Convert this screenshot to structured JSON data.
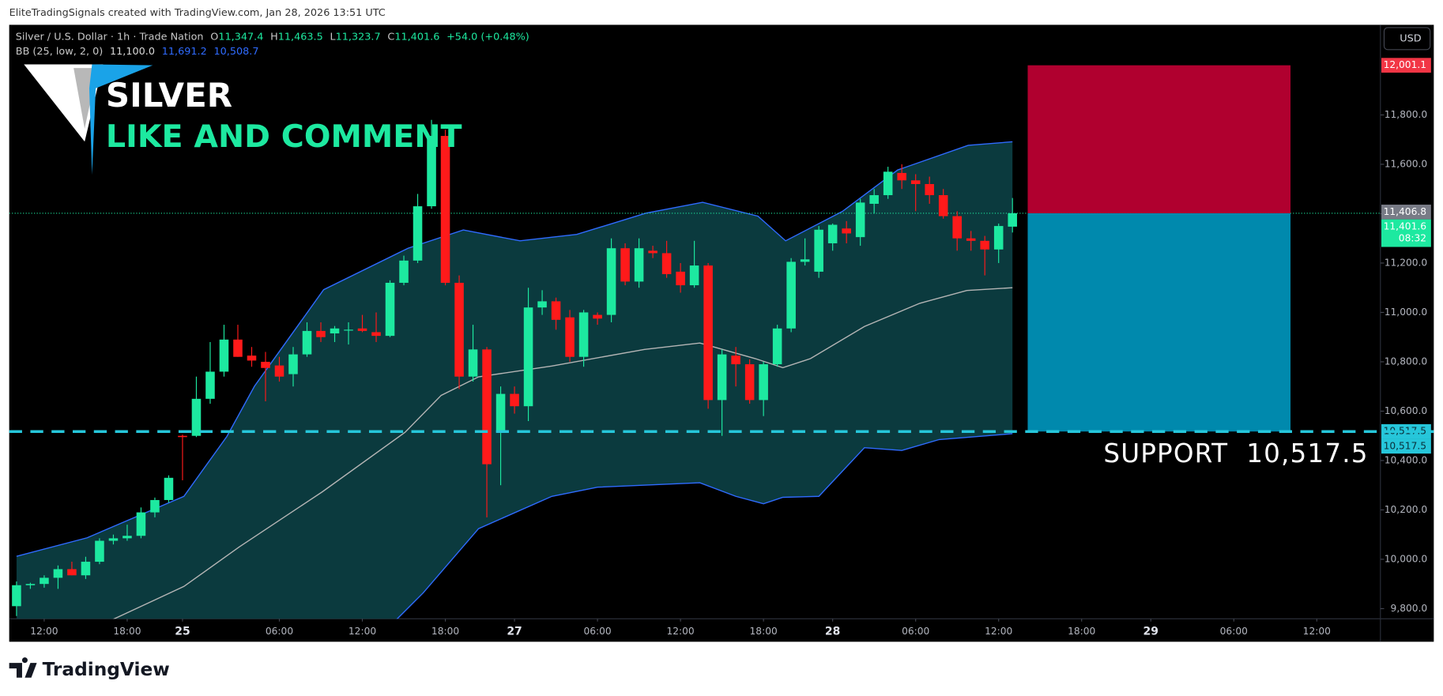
{
  "chart_data": {
    "type": "candlestick",
    "header": "EliteTradingSignals created with TradingView.com, Jan 28, 2026 13:51 UTC",
    "symbol": "Silver / U.S. Dollar · 1h · Trade Nation",
    "ohlc_legend": [
      {
        "label": "O",
        "value": "11,347.4"
      },
      {
        "label": "H",
        "value": "11,463.5"
      },
      {
        "label": "L",
        "value": "11,323.7"
      },
      {
        "label": "C",
        "value": "11,401.6"
      }
    ],
    "change": "+54.0 (+0.48%)",
    "indicator": {
      "name": "BB (25, low, 2, 0)",
      "values": [
        "11,100.0",
        "11,691.2",
        "10,508.7"
      ]
    },
    "overlay": {
      "title": "SILVER",
      "subtitle": "LIKE AND COMMENT",
      "support": "SUPPORT  10,517.5"
    },
    "currency": "USD",
    "countdown": "08:32",
    "footer": "TradingView",
    "up_color": "#1de9a0",
    "down_color": "#ff1a1a",
    "open": [
      9810,
      9895,
      9900,
      9925,
      9960,
      9935,
      9990,
      10075,
      10085,
      10095,
      10190,
      10240,
      10500,
      10500,
      10650,
      10760,
      10890,
      10825,
      10800,
      10785,
      10750,
      10830,
      10925,
      10915,
      10930,
      10935,
      10920,
      10905,
      11120,
      11210,
      11430,
      11715,
      11120,
      10740,
      10850,
      10515,
      10670,
      10620,
      11020,
      11045,
      10980,
      10820,
      10990,
      10990,
      11260,
      11125,
      11250,
      11240,
      11165,
      11110,
      11190,
      10645,
      10825,
      10790,
      10645,
      10790,
      10935,
      11205,
      11165,
      11280,
      11340,
      11305,
      11440,
      11475,
      11565,
      11535,
      11520,
      11475,
      11390,
      11300,
      11290,
      11255,
      11347.4
    ],
    "high": [
      9910,
      9905,
      9935,
      9975,
      9990,
      10010,
      10085,
      10100,
      10140,
      10210,
      10250,
      10340,
      10505,
      10740,
      10880,
      10950,
      10950,
      10860,
      10840,
      10820,
      10860,
      10960,
      10960,
      10945,
      10960,
      10990,
      11000,
      11130,
      11230,
      11480,
      11780,
      11740,
      11150,
      10950,
      10860,
      10700,
      10700,
      11100,
      11090,
      11060,
      11010,
      11010,
      11000,
      11300,
      11280,
      11300,
      11270,
      11290,
      11200,
      11290,
      11200,
      10850,
      10860,
      10810,
      10800,
      10950,
      11220,
      11300,
      11350,
      11360,
      11370,
      11460,
      11500,
      11590,
      11600,
      11560,
      11550,
      11500,
      11410,
      11330,
      11310,
      11360,
      11463.5
    ],
    "low": [
      9770,
      9880,
      9885,
      9880,
      9935,
      9920,
      9980,
      10060,
      10075,
      10085,
      10170,
      10230,
      10320,
      10495,
      10630,
      10740,
      10820,
      10780,
      10640,
      10720,
      10700,
      10820,
      10880,
      10880,
      10870,
      10920,
      10880,
      10900,
      11110,
      11200,
      11420,
      11110,
      10690,
      10720,
      10170,
      10300,
      10590,
      10560,
      10990,
      10930,
      10800,
      10780,
      10950,
      10960,
      11110,
      11100,
      11220,
      11140,
      11080,
      11100,
      10610,
      10500,
      10700,
      10630,
      10580,
      10780,
      10920,
      11190,
      11140,
      11250,
      11280,
      11270,
      11400,
      11460,
      11500,
      11410,
      11440,
      11380,
      11250,
      11250,
      11150,
      11200,
      11323.7
    ],
    "close": [
      9895,
      9900,
      9925,
      9960,
      9935,
      9990,
      10075,
      10085,
      10095,
      10190,
      10240,
      10330,
      10495,
      10650,
      10760,
      10890,
      10820,
      10805,
      10775,
      10740,
      10830,
      10925,
      10900,
      10935,
      10930,
      10925,
      10905,
      11120,
      11210,
      11430,
      11715,
      11120,
      10740,
      10850,
      10385,
      10670,
      10620,
      11020,
      11045,
      10970,
      10820,
      11000,
      10975,
      11260,
      11125,
      11260,
      11240,
      11155,
      11110,
      11190,
      10645,
      10830,
      10790,
      10645,
      10790,
      10935,
      11205,
      11215,
      11335,
      11355,
      11320,
      11445,
      11475,
      11570,
      11535,
      11520,
      11475,
      11390,
      11300,
      11290,
      11255,
      11350,
      11401.6
    ],
    "bollinger": {
      "fill": "#0b3a3e",
      "upper": {
        "color": "#2f6bff",
        "x": [
          0,
          5.1,
          12.1,
          15.2,
          17.2,
          22.2,
          28.3,
          32.3,
          36.4,
          40.5,
          45.5,
          49.6,
          53.6,
          55.6,
          59.7,
          63.7,
          68.8,
          72
        ],
        "values": [
          10012,
          10087,
          10255,
          10497,
          10701,
          11092,
          11260,
          11334,
          11290,
          11316,
          11402,
          11446,
          11390,
          11290,
          11409,
          11577,
          11677,
          11691.2
        ]
      },
      "middle": {
        "color": "#b5b5b5",
        "x": [
          6.8,
          12.1,
          16.1,
          22.1,
          28.1,
          30.7,
          33.4,
          38.7,
          45.4,
          49.4,
          53.4,
          55.4,
          57.4,
          61.3,
          65.3,
          68.7,
          72
        ],
        "values": [
          9752,
          9890,
          10050,
          10273,
          10515,
          10664,
          10739,
          10783,
          10850,
          10876,
          10813,
          10776,
          10813,
          10943,
          11037,
          11089,
          11100
        ]
      },
      "lower": {
        "color": "#2f6bff",
        "x": [
          27.4,
          29.4,
          33.4,
          38.7,
          42,
          49.4,
          52,
          54,
          55.4,
          58,
          61.3,
          64,
          66.7,
          72
        ],
        "values": [
          9752,
          9864,
          10124,
          10255,
          10292,
          10310,
          10255,
          10225,
          10251,
          10255,
          10452,
          10441,
          10485,
          10508.7
        ]
      }
    },
    "position": {
      "x": [
        73.1,
        92.1
      ],
      "target": 12001.1,
      "entry": 11401.6,
      "stop": 10517.5,
      "target_color": "#b0002f",
      "stop_color": "#0089ad"
    },
    "last_price": 11401.6,
    "support": 10517.5,
    "price_labels": [
      {
        "value": 12001.1,
        "label": "12,001.1",
        "color": "#f23645",
        "text_color": "#ffffff"
      },
      {
        "value": 11406.8,
        "label": "11,406.8",
        "color": "#787b86",
        "text_color": "#ffffff"
      },
      {
        "value": 11401.6,
        "label": "11,401.6",
        "color": "#1de9a0",
        "text_color": "#ffffff"
      },
      {
        "value": 10517.5,
        "label": "10,517.5",
        "color": "#26c6da",
        "text_color": "#0a2f3a"
      },
      {
        "value": 10517.5,
        "label": "10,517.5",
        "color": "#26c6da",
        "text_color": "#0a2f3a"
      }
    ],
    "xlim": [
      -0.53,
      98.6
    ],
    "ylim": [
      9759,
      12165
    ],
    "xticks": [
      {
        "value": 2,
        "label": "12:00"
      },
      {
        "value": 8,
        "label": "18:00"
      },
      {
        "value": 12,
        "label": "25"
      },
      {
        "value": 19,
        "label": "06:00"
      },
      {
        "value": 25,
        "label": "12:00"
      },
      {
        "value": 31,
        "label": "18:00"
      },
      {
        "value": 36,
        "label": "27"
      },
      {
        "value": 42,
        "label": "06:00"
      },
      {
        "value": 48,
        "label": "12:00"
      },
      {
        "value": 54,
        "label": "18:00"
      },
      {
        "value": 59,
        "label": "28"
      },
      {
        "value": 65,
        "label": "06:00"
      },
      {
        "value": 71,
        "label": "12:00"
      },
      {
        "value": 77,
        "label": "18:00"
      },
      {
        "value": 82,
        "label": "29"
      },
      {
        "value": 88,
        "label": "06:00"
      },
      {
        "value": 94,
        "label": "12:00"
      }
    ],
    "yticks": [
      {
        "value": 9800,
        "label": "9,800.0"
      },
      {
        "value": 10000,
        "label": "10,000.0"
      },
      {
        "value": 10200,
        "label": "10,200.0"
      },
      {
        "value": 10400,
        "label": "10,400.0"
      },
      {
        "value": 10600,
        "label": "10,600.0"
      },
      {
        "value": 10800,
        "label": "10,800.0"
      },
      {
        "value": 11000,
        "label": "11,000.0"
      },
      {
        "value": 11200,
        "label": "11,200.0"
      },
      {
        "value": 11400,
        "label": "11,400.0"
      },
      {
        "value": 11600,
        "label": "11,600.0"
      },
      {
        "value": 11800,
        "label": "11,800.0"
      }
    ]
  }
}
